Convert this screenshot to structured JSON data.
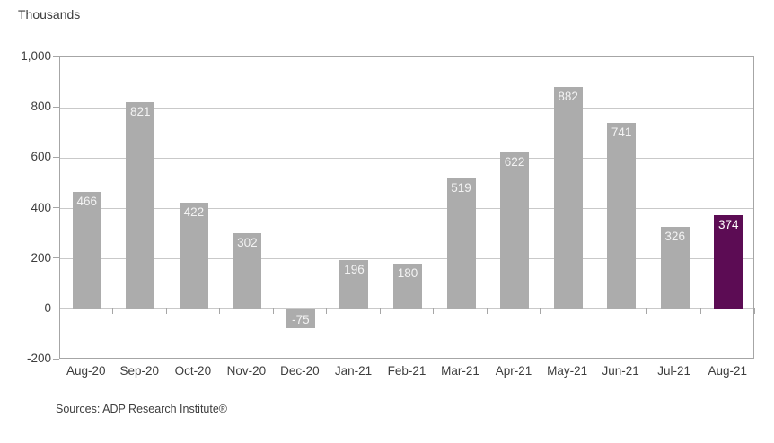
{
  "chart_data": {
    "type": "bar",
    "unit_label": "Thousands",
    "source": "Sources: ADP Research Institute®",
    "categories": [
      "Aug-20",
      "Sep-20",
      "Oct-20",
      "Nov-20",
      "Dec-20",
      "Jan-21",
      "Feb-21",
      "Mar-21",
      "Apr-21",
      "May-21",
      "Jun-21",
      "Jul-21",
      "Aug-21"
    ],
    "values": [
      466,
      821,
      422,
      302,
      -75,
      196,
      180,
      519,
      622,
      882,
      741,
      326,
      374
    ],
    "highlight_index": 12,
    "ylim": [
      -200,
      1000
    ],
    "yticks": [
      {
        "value": 1000,
        "label": "1,000"
      },
      {
        "value": 800,
        "label": "800"
      },
      {
        "value": 600,
        "label": "600"
      },
      {
        "value": 400,
        "label": "400"
      },
      {
        "value": 200,
        "label": "200"
      },
      {
        "value": 0,
        "label": "0"
      },
      {
        "value": -200,
        "label": "-200"
      }
    ],
    "grid": true,
    "legend": "none",
    "colors": {
      "bar": "#acacac",
      "highlight_bar": "#5c0c54",
      "bar_label": "#f3f3f3",
      "highlight_bar_label": "#ffffff",
      "grid_line": "#c9c9c9",
      "axis_line": "#a6a6a6",
      "text": "#3d3d3d"
    }
  }
}
